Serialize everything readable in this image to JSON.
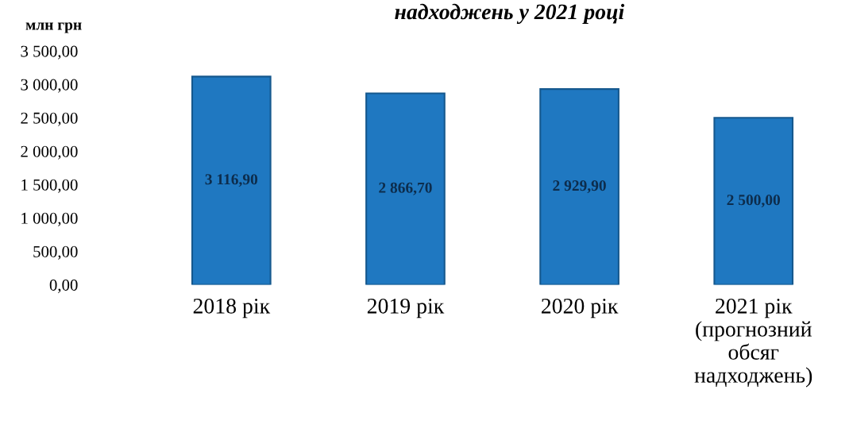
{
  "chart_data": {
    "type": "bar",
    "title": "надходжень у 2021 році",
    "ylabel": "млн грн",
    "categories": [
      "2018 рік",
      "2019 рік",
      "2020 рік",
      "2021 рік\n(прогнозний\nобсяг\nнадходжень)"
    ],
    "values": [
      3116.9,
      2866.7,
      2929.9,
      2500.0
    ],
    "value_labels": [
      "3 116,90",
      "2 866,70",
      "2 929,90",
      "2 500,00"
    ],
    "color": "#1f78c1",
    "ylim": [
      0,
      3500
    ],
    "yticks": [
      {
        "value": 0,
        "label": "0,00"
      },
      {
        "value": 500,
        "label": "500,00"
      },
      {
        "value": 1000,
        "label": "1 000,00"
      },
      {
        "value": 1500,
        "label": "1 500,00"
      },
      {
        "value": 2000,
        "label": "2 000,00"
      },
      {
        "value": 2500,
        "label": "2 500,00"
      },
      {
        "value": 3000,
        "label": "3 000,00"
      },
      {
        "value": 3500,
        "label": "3 500,00"
      }
    ],
    "grid": false,
    "legend": false
  }
}
